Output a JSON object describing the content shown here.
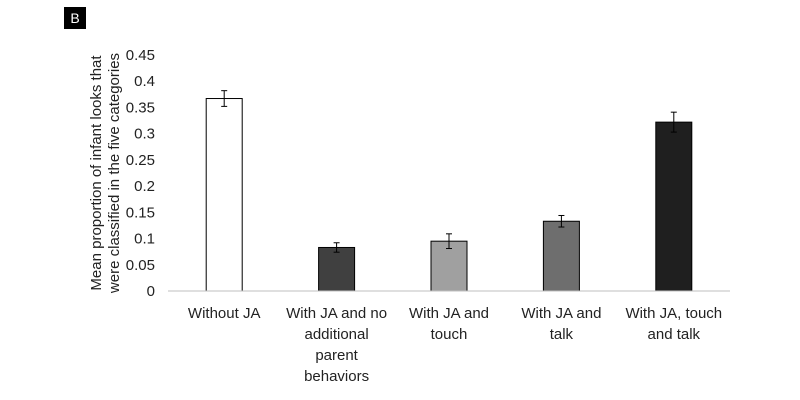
{
  "panel_label": "B",
  "chart_data": {
    "type": "bar",
    "ylabel": "Mean proportion of infant looks that were classified in the five categories",
    "ylabel_lines": [
      "Mean proportion of infant looks that",
      "were classified in the five categories"
    ],
    "ylim": [
      0,
      0.45
    ],
    "yticks": [
      "0",
      "0.05",
      "0.1",
      "0.15",
      "0.2",
      "0.25",
      "0.3",
      "0.35",
      "0.4",
      "0.45"
    ],
    "grid": false,
    "legend": "none",
    "categories": [
      "Without JA",
      "With JA and no additional parent behaviors",
      "With JA and touch",
      "With JA and talk",
      "With JA, touch and talk"
    ],
    "category_lines": [
      [
        "Without JA"
      ],
      [
        "With JA and no",
        "additional",
        "parent",
        "behaviors"
      ],
      [
        "With JA and",
        "touch"
      ],
      [
        "With JA and",
        "talk"
      ],
      [
        "With JA, touch",
        "and talk"
      ]
    ],
    "values": [
      0.367,
      0.083,
      0.095,
      0.133,
      0.322
    ],
    "errors": [
      0.015,
      0.009,
      0.014,
      0.011,
      0.019
    ],
    "bar_colors": [
      "#ffffff",
      "#404040",
      "#a0a0a0",
      "#6e6e6e",
      "#1f1f1f"
    ]
  }
}
